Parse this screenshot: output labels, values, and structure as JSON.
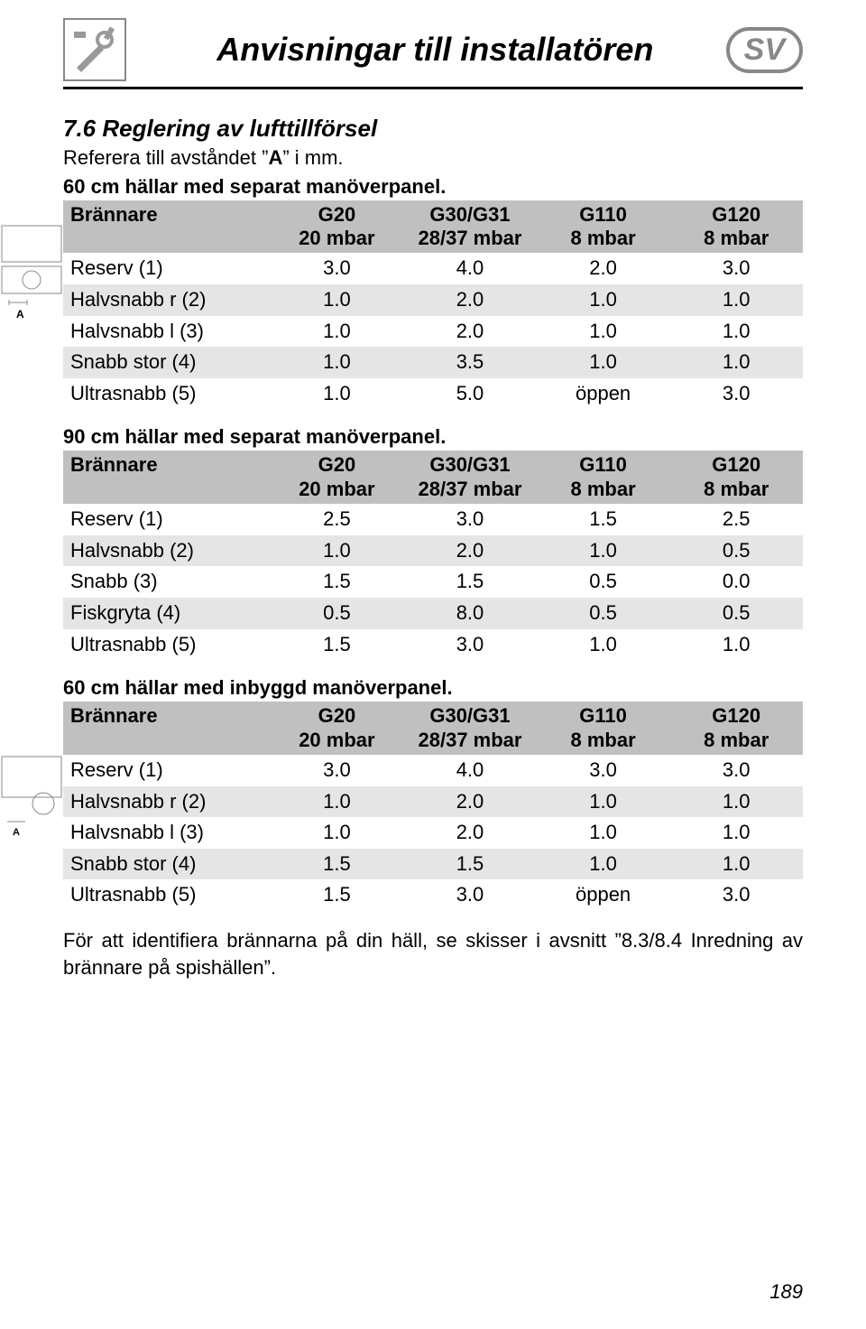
{
  "header": {
    "title": "Anvisningar till installatören",
    "badge": "SV"
  },
  "section": {
    "heading": "7.6 Reglering av lufttillförsel",
    "ref_pre": "Referera till avståndet ”",
    "ref_bold": "A",
    "ref_post": "” i mm."
  },
  "table1": {
    "caption": "60 cm hällar med separat manöverpanel.",
    "headers": {
      "burner": "Brännare",
      "c1_top": "G20",
      "c1_bot": "20 mbar",
      "c2_top": "G30/G31",
      "c2_bot": "28/37 mbar",
      "c3_top": "G110",
      "c3_bot": "8 mbar",
      "c4_top": "G120",
      "c4_bot": "8 mbar"
    },
    "rows": [
      {
        "label": "Reserv (1)",
        "v": [
          "3.0",
          "4.0",
          "2.0",
          "3.0"
        ]
      },
      {
        "label": "Halvsnabb r (2)",
        "v": [
          "1.0",
          "2.0",
          "1.0",
          "1.0"
        ]
      },
      {
        "label": "Halvsnabb l (3)",
        "v": [
          "1.0",
          "2.0",
          "1.0",
          "1.0"
        ]
      },
      {
        "label": "Snabb stor (4)",
        "v": [
          "1.0",
          "3.5",
          "1.0",
          "1.0"
        ]
      },
      {
        "label": "Ultrasnabb (5)",
        "v": [
          "1.0",
          "5.0",
          "öppen",
          "3.0"
        ]
      }
    ]
  },
  "table2": {
    "caption": "90 cm hällar med separat manöverpanel.",
    "headers": {
      "burner": "Brännare",
      "c1_top": "G20",
      "c1_bot": "20 mbar",
      "c2_top": "G30/G31",
      "c2_bot": "28/37 mbar",
      "c3_top": "G110",
      "c3_bot": "8 mbar",
      "c4_top": "G120",
      "c4_bot": "8 mbar"
    },
    "rows": [
      {
        "label": "Reserv (1)",
        "v": [
          "2.5",
          "3.0",
          "1.5",
          "2.5"
        ]
      },
      {
        "label": "Halvsnabb (2)",
        "v": [
          "1.0",
          "2.0",
          "1.0",
          "0.5"
        ]
      },
      {
        "label": "Snabb (3)",
        "v": [
          "1.5",
          "1.5",
          "0.5",
          "0.0"
        ]
      },
      {
        "label": "Fiskgryta (4)",
        "v": [
          "0.5",
          "8.0",
          "0.5",
          "0.5"
        ]
      },
      {
        "label": "Ultrasnabb (5)",
        "v": [
          "1.5",
          "3.0",
          "1.0",
          "1.0"
        ]
      }
    ]
  },
  "table3": {
    "caption": "60 cm hällar med inbyggd manöverpanel.",
    "headers": {
      "burner": "Brännare",
      "c1_top": "G20",
      "c1_bot": "20 mbar",
      "c2_top": "G30/G31",
      "c2_bot": "28/37 mbar",
      "c3_top": "G110",
      "c3_bot": "8 mbar",
      "c4_top": "G120",
      "c4_bot": "8 mbar"
    },
    "rows": [
      {
        "label": "Reserv (1)",
        "v": [
          "3.0",
          "4.0",
          "3.0",
          "3.0"
        ]
      },
      {
        "label": "Halvsnabb r (2)",
        "v": [
          "1.0",
          "2.0",
          "1.0",
          "1.0"
        ]
      },
      {
        "label": "Halvsnabb l (3)",
        "v": [
          "1.0",
          "2.0",
          "1.0",
          "1.0"
        ]
      },
      {
        "label": "Snabb stor (4)",
        "v": [
          "1.5",
          "1.5",
          "1.0",
          "1.0"
        ]
      },
      {
        "label": "Ultrasnabb (5)",
        "v": [
          "1.5",
          "3.0",
          "öppen",
          "3.0"
        ]
      }
    ]
  },
  "note": "För att identifiera brännarna på din häll, se skisser i avsnitt ”8.3/8.4 Inredning av brännare på spishällen”.",
  "page": "189"
}
